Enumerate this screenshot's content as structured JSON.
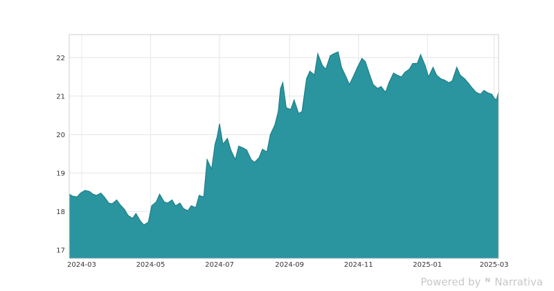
{
  "chart_data": {
    "type": "area",
    "title": "",
    "xlabel": "",
    "ylabel": "",
    "x_range": [
      "2024-02-19",
      "2025-03-05"
    ],
    "ylim": [
      16.78,
      22.6
    ],
    "y_ticks": [
      17,
      18,
      19,
      20,
      21,
      22
    ],
    "x_ticks": [
      "2024-03",
      "2024-05",
      "2024-07",
      "2024-09",
      "2024-11",
      "2025-01",
      "2025-03"
    ],
    "grid": true,
    "legend": "none",
    "colors": {
      "fill": "#2a959f",
      "line": "#1f7f89",
      "grid": "#e6e6e6",
      "frame": "#cccccc"
    },
    "series": [
      {
        "points": [
          [
            "2024-02-19",
            18.45
          ],
          [
            "2024-02-22",
            18.4
          ],
          [
            "2024-02-26",
            18.38
          ],
          [
            "2024-02-29",
            18.48
          ],
          [
            "2024-03-04",
            18.55
          ],
          [
            "2024-03-08",
            18.52
          ],
          [
            "2024-03-11",
            18.45
          ],
          [
            "2024-03-14",
            18.42
          ],
          [
            "2024-03-18",
            18.48
          ],
          [
            "2024-03-21",
            18.38
          ],
          [
            "2024-03-25",
            18.22
          ],
          [
            "2024-03-28",
            18.2
          ],
          [
            "2024-04-01",
            18.3
          ],
          [
            "2024-04-04",
            18.18
          ],
          [
            "2024-04-08",
            18.05
          ],
          [
            "2024-04-11",
            17.9
          ],
          [
            "2024-04-15",
            17.82
          ],
          [
            "2024-04-18",
            17.95
          ],
          [
            "2024-04-22",
            17.75
          ],
          [
            "2024-04-25",
            17.65
          ],
          [
            "2024-04-29",
            17.72
          ],
          [
            "2024-05-02",
            18.15
          ],
          [
            "2024-05-06",
            18.25
          ],
          [
            "2024-05-09",
            18.45
          ],
          [
            "2024-05-13",
            18.25
          ],
          [
            "2024-05-16",
            18.22
          ],
          [
            "2024-05-20",
            18.3
          ],
          [
            "2024-05-23",
            18.15
          ],
          [
            "2024-05-27",
            18.22
          ],
          [
            "2024-05-30",
            18.08
          ],
          [
            "2024-06-03",
            18.02
          ],
          [
            "2024-06-06",
            18.15
          ],
          [
            "2024-06-10",
            18.1
          ],
          [
            "2024-06-13",
            18.42
          ],
          [
            "2024-06-17",
            18.38
          ],
          [
            "2024-06-20",
            19.35
          ],
          [
            "2024-06-24",
            19.1
          ],
          [
            "2024-06-27",
            19.75
          ],
          [
            "2024-06-29",
            19.95
          ],
          [
            "2024-07-01",
            20.28
          ],
          [
            "2024-07-04",
            19.75
          ],
          [
            "2024-07-08",
            19.9
          ],
          [
            "2024-07-11",
            19.6
          ],
          [
            "2024-07-15",
            19.35
          ],
          [
            "2024-07-18",
            19.7
          ],
          [
            "2024-07-22",
            19.65
          ],
          [
            "2024-07-25",
            19.6
          ],
          [
            "2024-07-29",
            19.35
          ],
          [
            "2024-08-01",
            19.28
          ],
          [
            "2024-08-05",
            19.4
          ],
          [
            "2024-08-08",
            19.62
          ],
          [
            "2024-08-12",
            19.55
          ],
          [
            "2024-08-15",
            20.0
          ],
          [
            "2024-08-19",
            20.25
          ],
          [
            "2024-08-22",
            20.6
          ],
          [
            "2024-08-24",
            21.2
          ],
          [
            "2024-08-26",
            21.35
          ],
          [
            "2024-08-29",
            20.7
          ],
          [
            "2024-09-02",
            20.65
          ],
          [
            "2024-09-05",
            20.9
          ],
          [
            "2024-09-09",
            20.55
          ],
          [
            "2024-09-12",
            20.6
          ],
          [
            "2024-09-16",
            21.45
          ],
          [
            "2024-09-19",
            21.65
          ],
          [
            "2024-09-23",
            21.55
          ],
          [
            "2024-09-26",
            22.1
          ],
          [
            "2024-09-30",
            21.8
          ],
          [
            "2024-10-03",
            21.7
          ],
          [
            "2024-10-07",
            22.05
          ],
          [
            "2024-10-10",
            22.1
          ],
          [
            "2024-10-14",
            22.15
          ],
          [
            "2024-10-17",
            21.75
          ],
          [
            "2024-10-21",
            21.5
          ],
          [
            "2024-10-24",
            21.3
          ],
          [
            "2024-10-28",
            21.55
          ],
          [
            "2024-10-31",
            21.75
          ],
          [
            "2024-11-04",
            21.98
          ],
          [
            "2024-11-07",
            21.9
          ],
          [
            "2024-11-11",
            21.55
          ],
          [
            "2024-11-14",
            21.3
          ],
          [
            "2024-11-18",
            21.2
          ],
          [
            "2024-11-21",
            21.25
          ],
          [
            "2024-11-25",
            21.1
          ],
          [
            "2024-11-28",
            21.35
          ],
          [
            "2024-12-02",
            21.6
          ],
          [
            "2024-12-05",
            21.55
          ],
          [
            "2024-12-09",
            21.5
          ],
          [
            "2024-12-12",
            21.62
          ],
          [
            "2024-12-16",
            21.7
          ],
          [
            "2024-12-19",
            21.85
          ],
          [
            "2024-12-23",
            21.85
          ],
          [
            "2024-12-26",
            22.08
          ],
          [
            "2024-12-30",
            21.8
          ],
          [
            "2025-01-02",
            21.5
          ],
          [
            "2025-01-06",
            21.75
          ],
          [
            "2025-01-09",
            21.55
          ],
          [
            "2025-01-13",
            21.45
          ],
          [
            "2025-01-16",
            21.42
          ],
          [
            "2025-01-20",
            21.35
          ],
          [
            "2025-01-23",
            21.4
          ],
          [
            "2025-01-27",
            21.75
          ],
          [
            "2025-01-30",
            21.55
          ],
          [
            "2025-02-03",
            21.45
          ],
          [
            "2025-02-06",
            21.35
          ],
          [
            "2025-02-10",
            21.2
          ],
          [
            "2025-02-13",
            21.1
          ],
          [
            "2025-02-17",
            21.05
          ],
          [
            "2025-02-20",
            21.15
          ],
          [
            "2025-02-24",
            21.08
          ],
          [
            "2025-02-27",
            21.05
          ],
          [
            "2025-03-01",
            20.95
          ],
          [
            "2025-03-03",
            20.9
          ],
          [
            "2025-03-04",
            21.0
          ],
          [
            "2025-03-05",
            21.1
          ]
        ]
      }
    ]
  },
  "watermark": {
    "prefix": "Powered by",
    "brand": "Narrativa"
  }
}
